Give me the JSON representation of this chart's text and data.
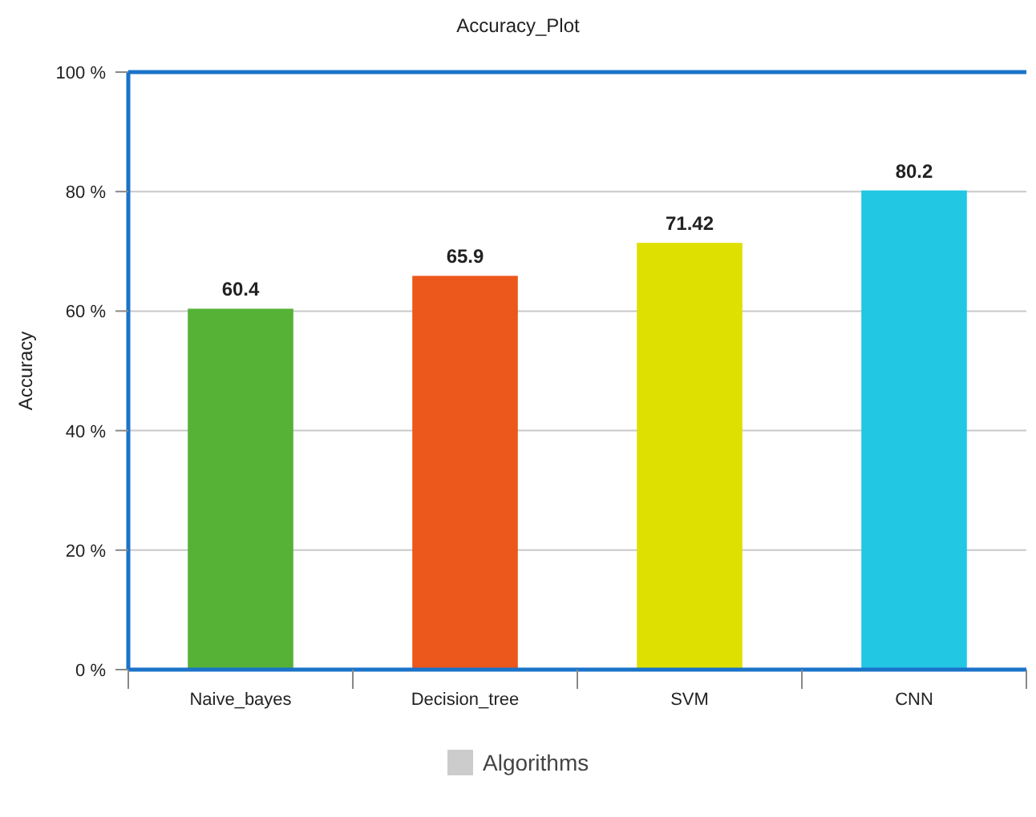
{
  "chart_data": {
    "type": "bar",
    "title": "Accuracy_Plot",
    "ylabel": "Accuracy",
    "categories": [
      "Naive_bayes",
      "Decision_tree",
      "SVM",
      "CNN"
    ],
    "series": [
      {
        "name": "Algorithms",
        "color": "#cccccc",
        "colors": [
          "#55b236",
          "#ec571c",
          "#dde000",
          "#22c7e3"
        ],
        "values": [
          60.4,
          65.9,
          71.42,
          80.2
        ]
      }
    ],
    "ylim": [
      0,
      100
    ],
    "yticks": [
      {
        "value": 0,
        "label": "0 %"
      },
      {
        "value": 20,
        "label": "20 %"
      },
      {
        "value": 40,
        "label": "40 %"
      },
      {
        "value": 60,
        "label": "60 %"
      },
      {
        "value": 80,
        "label": "80 %"
      },
      {
        "value": 100,
        "label": "100 %"
      }
    ],
    "grid": "y",
    "data_labels": true,
    "legend": "bottom"
  }
}
